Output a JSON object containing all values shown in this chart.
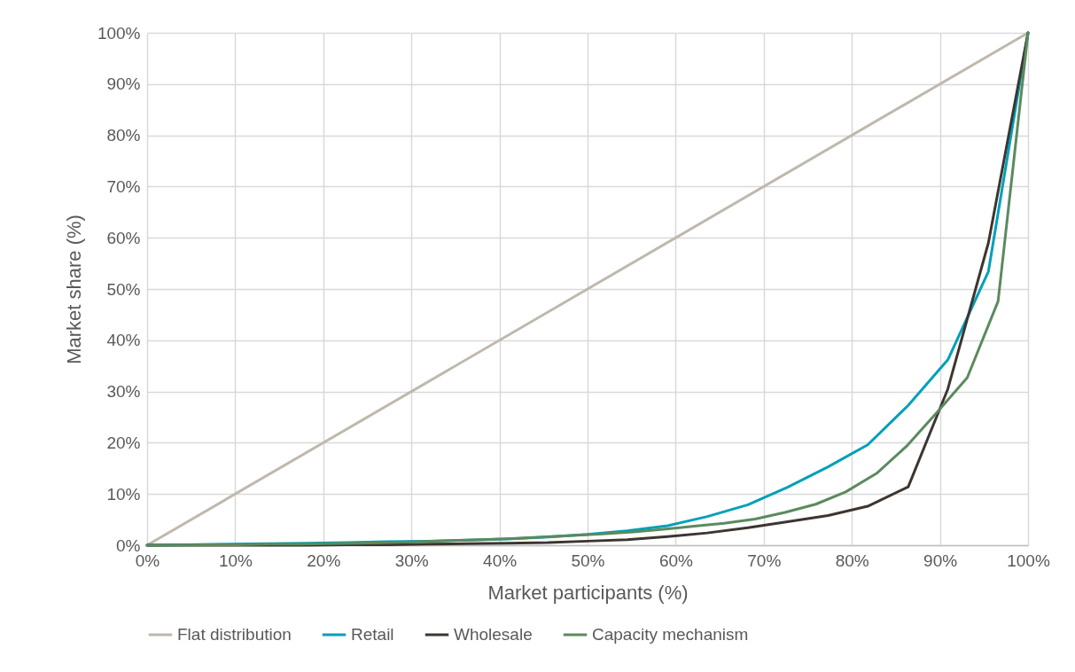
{
  "chart_data": {
    "type": "line",
    "xlabel": "Market participants (%)",
    "ylabel": "Market share (%)",
    "xlim": [
      0,
      100
    ],
    "ylim": [
      0,
      100
    ],
    "xticks": [
      {
        "value": 0,
        "label": "0%"
      },
      {
        "value": 10,
        "label": "10%"
      },
      {
        "value": 20,
        "label": "20%"
      },
      {
        "value": 30,
        "label": "30%"
      },
      {
        "value": 40,
        "label": "40%"
      },
      {
        "value": 50,
        "label": "50%"
      },
      {
        "value": 60,
        "label": "60%"
      },
      {
        "value": 70,
        "label": "70%"
      },
      {
        "value": 80,
        "label": "80%"
      },
      {
        "value": 90,
        "label": "90%"
      },
      {
        "value": 100,
        "label": "100%"
      }
    ],
    "yticks": [
      {
        "value": 0,
        "label": "0%"
      },
      {
        "value": 10,
        "label": "10%"
      },
      {
        "value": 20,
        "label": "20%"
      },
      {
        "value": 30,
        "label": "30%"
      },
      {
        "value": 40,
        "label": "40%"
      },
      {
        "value": 50,
        "label": "50%"
      },
      {
        "value": 60,
        "label": "60%"
      },
      {
        "value": 70,
        "label": "70%"
      },
      {
        "value": 80,
        "label": "80%"
      },
      {
        "value": 90,
        "label": "90%"
      },
      {
        "value": 100,
        "label": "100%"
      }
    ],
    "grid": true,
    "legend": "bottom",
    "marker": "none",
    "line_style": "solid",
    "series": [
      {
        "name": "Flat distribution",
        "color": "#bfb8ad",
        "x": [
          0,
          100
        ],
        "values": [
          0,
          100
        ]
      },
      {
        "name": "Retail",
        "color": "#00a0b8",
        "x": [
          0,
          4.5,
          9.1,
          13.6,
          18.2,
          22.7,
          27.3,
          31.8,
          36.4,
          40.9,
          45.5,
          50,
          54.5,
          59.1,
          63.6,
          68.2,
          72.7,
          77.3,
          81.8,
          86.4,
          90.9,
          95.5,
          100
        ],
        "values": [
          0,
          0.1,
          0.2,
          0.3,
          0.4,
          0.5,
          0.7,
          0.8,
          1.0,
          1.2,
          1.6,
          2.1,
          2.8,
          3.8,
          5.6,
          7.9,
          11.3,
          15.3,
          19.6,
          27.3,
          36.2,
          53.4,
          100
        ]
      },
      {
        "name": "Wholesale",
        "color": "#3d3530",
        "x": [
          0,
          4.5,
          9.1,
          13.6,
          18.2,
          22.7,
          27.3,
          31.8,
          36.4,
          40.9,
          45.5,
          50,
          54.5,
          59.1,
          63.6,
          68.2,
          72.7,
          77.3,
          81.8,
          86.4,
          90.9,
          95.5,
          100
        ],
        "values": [
          0,
          0,
          0,
          0,
          0,
          0.1,
          0.1,
          0.2,
          0.3,
          0.4,
          0.5,
          0.8,
          1.1,
          1.7,
          2.4,
          3.4,
          4.6,
          5.8,
          7.6,
          11.4,
          30.5,
          59,
          100
        ]
      },
      {
        "name": "Capacity mechanism",
        "color": "#5b8a5e",
        "x": [
          0,
          3.4,
          6.9,
          10.3,
          13.8,
          17.2,
          20.7,
          24.1,
          27.6,
          31,
          34.5,
          37.9,
          41.4,
          44.8,
          48.3,
          51.7,
          55.2,
          58.6,
          62.1,
          65.5,
          69,
          72.4,
          75.9,
          79.3,
          82.8,
          86.2,
          89.7,
          93.1,
          96.6,
          100
        ],
        "values": [
          0,
          0,
          0.1,
          0.1,
          0.2,
          0.2,
          0.3,
          0.4,
          0.5,
          0.7,
          0.9,
          1.1,
          1.3,
          1.6,
          1.9,
          2.2,
          2.6,
          3.1,
          3.7,
          4.3,
          5.1,
          6.4,
          8.0,
          10.4,
          14.0,
          19.3,
          26.0,
          32.7,
          47.6,
          100
        ]
      }
    ]
  }
}
